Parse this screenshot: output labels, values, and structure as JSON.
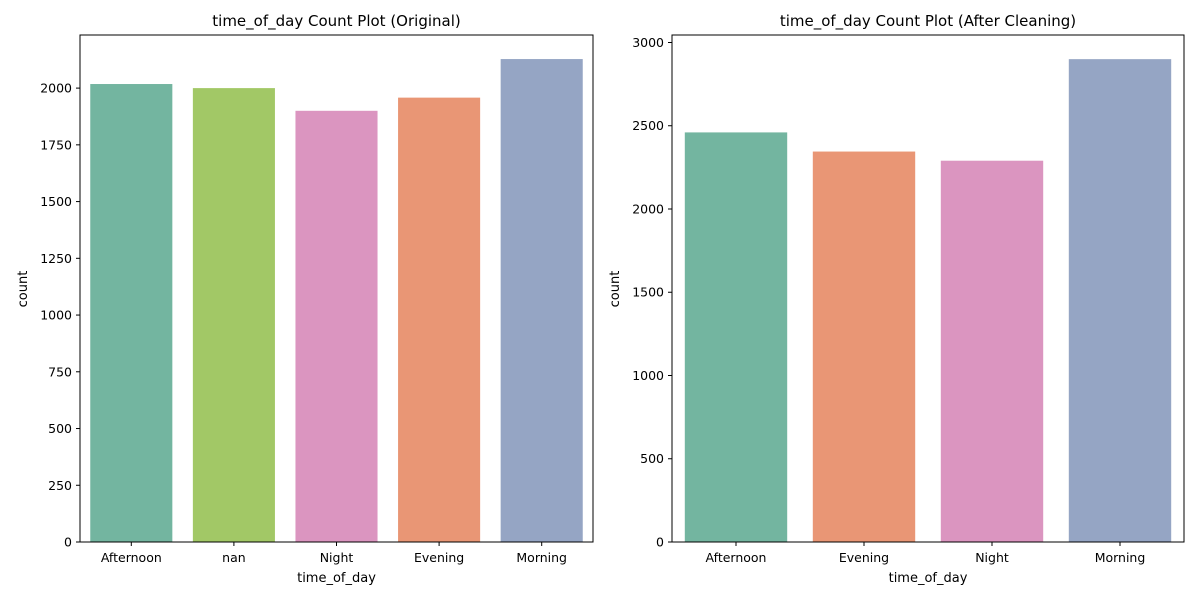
{
  "chart_data": [
    {
      "type": "bar",
      "title": "time_of_day Count Plot (Original)",
      "xlabel": "time_of_day",
      "ylabel": "count",
      "categories": [
        "Afternoon",
        "nan",
        "Night",
        "Evening",
        "Morning"
      ],
      "values": [
        2018,
        2000,
        1900,
        1958,
        2128
      ],
      "colors": [
        "#73b5a0",
        "#a2c866",
        "#db95c0",
        "#e99675",
        "#95a5c4"
      ],
      "ylim": [
        0,
        2234
      ],
      "yticks": [
        0,
        250,
        500,
        750,
        1000,
        1250,
        1500,
        1750,
        2000
      ],
      "grid": false,
      "legend": "none"
    },
    {
      "type": "bar",
      "title": "time_of_day Count Plot (After Cleaning)",
      "xlabel": "time_of_day",
      "ylabel": "count",
      "categories": [
        "Afternoon",
        "Evening",
        "Night",
        "Morning"
      ],
      "values": [
        2460,
        2345,
        2290,
        2900
      ],
      "colors": [
        "#73b5a0",
        "#e99675",
        "#db95c0",
        "#95a5c4"
      ],
      "ylim": [
        0,
        3045
      ],
      "yticks": [
        0,
        500,
        1000,
        1500,
        2000,
        2500,
        3000
      ],
      "grid": false,
      "legend": "none"
    }
  ]
}
